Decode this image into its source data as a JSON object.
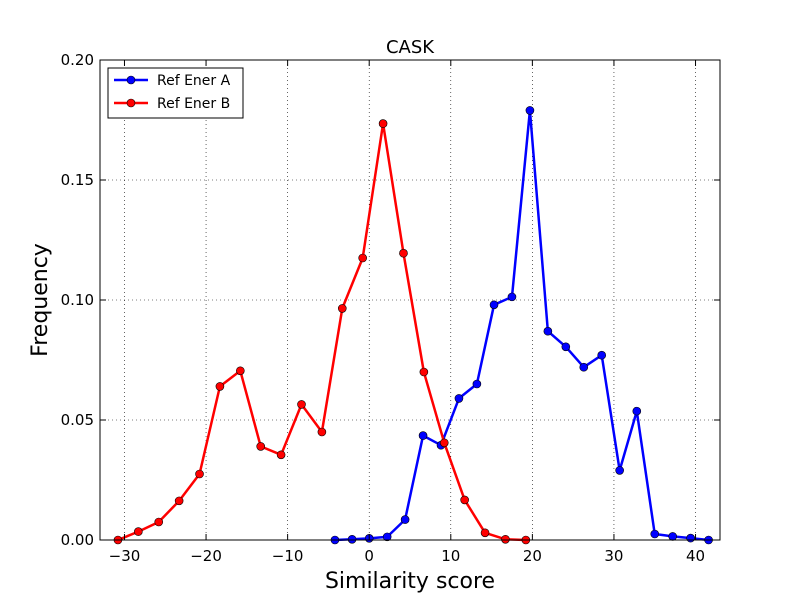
{
  "chart_data": {
    "type": "line",
    "title": "CASK",
    "xlabel": "Similarity score",
    "ylabel": "Frequency",
    "xlim": [
      -33,
      43
    ],
    "ylim": [
      0,
      0.2
    ],
    "xticks": [
      -30,
      -20,
      -10,
      0,
      10,
      20,
      30,
      40
    ],
    "xtick_labels": [
      "−30",
      "−20",
      "−10",
      "0",
      "10",
      "20",
      "30",
      "40"
    ],
    "yticks": [
      0,
      0.05,
      0.1,
      0.15,
      0.2
    ],
    "ytick_labels": [
      "0.00",
      "0.05",
      "0.10",
      "0.15",
      "0.20"
    ],
    "grid": true,
    "legend_position": "top-left",
    "series": [
      {
        "name": "Ref Ener A",
        "color": "#0000ff",
        "x": [
          -4.2,
          -2.1,
          0.0,
          2.2,
          4.4,
          6.6,
          8.8,
          11.0,
          13.2,
          15.3,
          17.5,
          19.7,
          21.9,
          24.1,
          26.3,
          28.5,
          30.7,
          32.8,
          35.0,
          37.2,
          39.4,
          41.6
        ],
        "y": [
          0.0,
          0.0003,
          0.0007,
          0.0013,
          0.0085,
          0.0435,
          0.0395,
          0.059,
          0.065,
          0.098,
          0.1013,
          0.179,
          0.087,
          0.0805,
          0.072,
          0.077,
          0.029,
          0.0537,
          0.0025,
          0.0015,
          0.0008,
          0.0
        ]
      },
      {
        "name": "Ref Ener B",
        "color": "#ff0000",
        "x": [
          -30.8,
          -28.3,
          -25.8,
          -23.3,
          -20.8,
          -18.3,
          -15.8,
          -13.3,
          -10.8,
          -8.3,
          -5.8,
          -3.3,
          -0.8,
          1.7,
          4.2,
          6.7,
          9.2,
          11.7,
          14.2,
          16.7,
          19.2
        ],
        "y": [
          0.0,
          0.0035,
          0.0075,
          0.0163,
          0.0275,
          0.064,
          0.0705,
          0.039,
          0.0355,
          0.0565,
          0.045,
          0.0965,
          0.1175,
          0.1735,
          0.1195,
          0.07,
          0.0405,
          0.0167,
          0.003,
          0.0003,
          0.0
        ]
      }
    ]
  }
}
